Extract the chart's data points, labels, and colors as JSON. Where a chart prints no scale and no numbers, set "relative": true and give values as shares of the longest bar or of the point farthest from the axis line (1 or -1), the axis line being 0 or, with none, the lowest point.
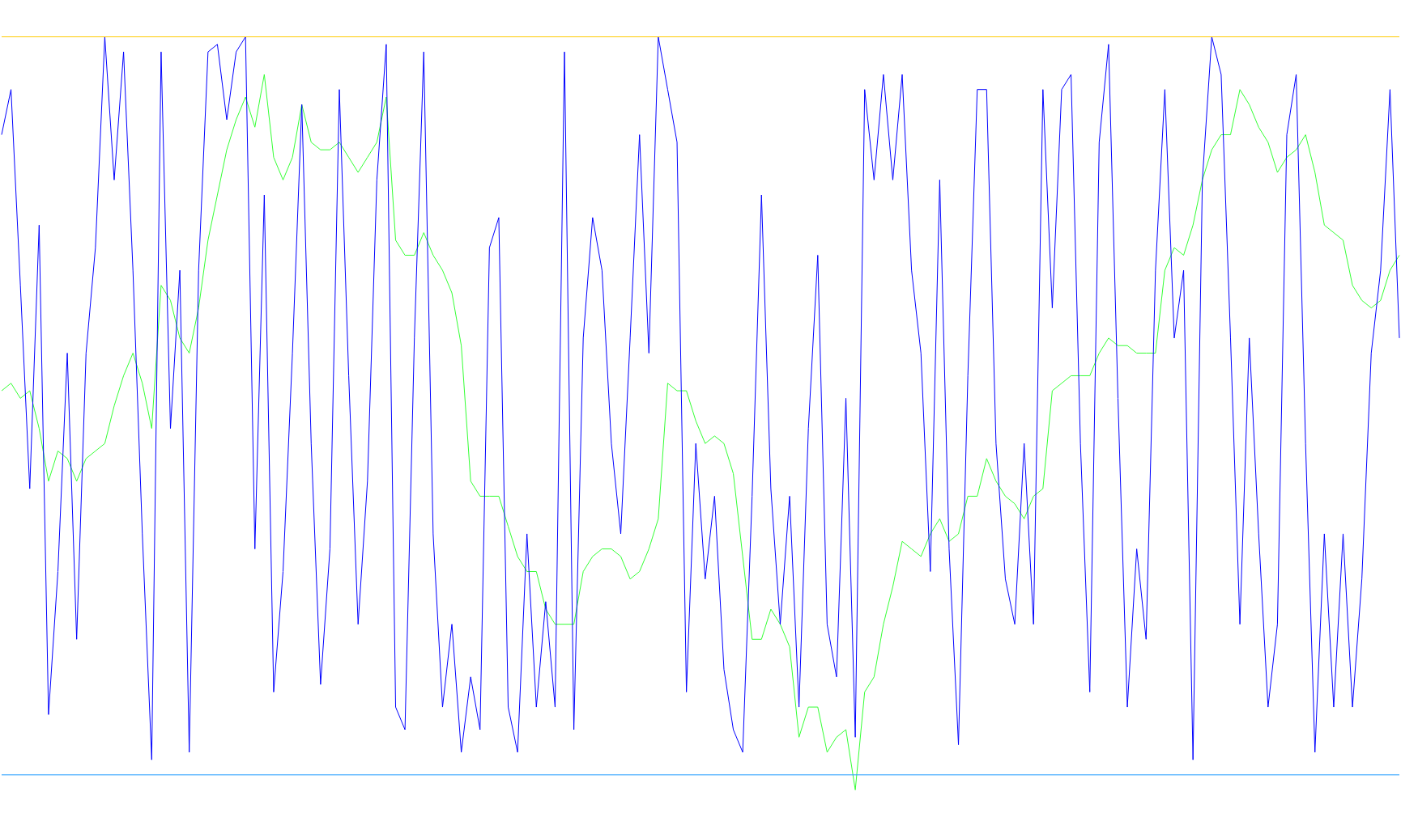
{
  "chart_data": {
    "type": "line",
    "relative": true,
    "categories": [
      null,
      null,
      null,
      null,
      null,
      null,
      null,
      null,
      null,
      null,
      null,
      null,
      null,
      null,
      null,
      null,
      null,
      null,
      null,
      null,
      null,
      null,
      null,
      null,
      null,
      null,
      null,
      null,
      null,
      null,
      null,
      null,
      null,
      null,
      null,
      null,
      null,
      null,
      null,
      null,
      null,
      null,
      null,
      null,
      null,
      null,
      null,
      null,
      null,
      null,
      null,
      null,
      null,
      null,
      null,
      null,
      null,
      null,
      null,
      null,
      null,
      null,
      null,
      null,
      null,
      null,
      null,
      null,
      null,
      null,
      null,
      null,
      null,
      null,
      null,
      null,
      null,
      null,
      null,
      null,
      null,
      null,
      null,
      null,
      null,
      null,
      null,
      null,
      null,
      null,
      null,
      null,
      null,
      null,
      null,
      null,
      null,
      null,
      null,
      null,
      null,
      null,
      null,
      null,
      null,
      null,
      null,
      null,
      null,
      null,
      null,
      null,
      null,
      null,
      null,
      null,
      null,
      null,
      null,
      null,
      null,
      null,
      null,
      null,
      null,
      null,
      null,
      null,
      null,
      null,
      null,
      null,
      null,
      null,
      null,
      null,
      null,
      null,
      null,
      null,
      null,
      null,
      null,
      null,
      null,
      null,
      null,
      null,
      null,
      null
    ],
    "series": [
      {
        "color": "#33ff33",
        "values": [
          0.53,
          0.54,
          0.52,
          0.53,
          0.48,
          0.41,
          0.45,
          0.44,
          0.41,
          0.44,
          0.45,
          0.46,
          0.51,
          0.55,
          0.58,
          0.54,
          0.48,
          0.67,
          0.65,
          0.6,
          0.58,
          0.64,
          0.73,
          0.79,
          0.85,
          0.89,
          0.92,
          0.88,
          0.95,
          0.84,
          0.81,
          0.84,
          0.91,
          0.86,
          0.85,
          0.85,
          0.86,
          0.84,
          0.82,
          0.84,
          0.86,
          0.92,
          0.73,
          0.71,
          0.71,
          0.74,
          0.71,
          0.69,
          0.66,
          0.59,
          0.41,
          0.39,
          0.39,
          0.39,
          0.35,
          0.31,
          0.29,
          0.29,
          0.24,
          0.22,
          0.22,
          0.22,
          0.29,
          0.31,
          0.32,
          0.32,
          0.31,
          0.28,
          0.29,
          0.32,
          0.36,
          0.54,
          0.53,
          0.53,
          0.49,
          0.46,
          0.47,
          0.46,
          0.42,
          0.31,
          0.2,
          0.2,
          0.24,
          0.22,
          0.19,
          0.07,
          0.11,
          0.11,
          0.05,
          0.07,
          0.08,
          0.0,
          0.13,
          0.15,
          0.22,
          0.27,
          0.33,
          0.32,
          0.31,
          0.34,
          0.36,
          0.33,
          0.34,
          0.39,
          0.39,
          0.44,
          0.41,
          0.39,
          0.38,
          0.36,
          0.39,
          0.4,
          0.53,
          0.54,
          0.55,
          0.55,
          0.55,
          0.58,
          0.6,
          0.59,
          0.59,
          0.58,
          0.58,
          0.58,
          0.69,
          0.72,
          0.71,
          0.75,
          0.81,
          0.85,
          0.87,
          0.87,
          0.93,
          0.91,
          0.88,
          0.86,
          0.82,
          0.84,
          0.85,
          0.87,
          0.82,
          0.75,
          0.74,
          0.73,
          0.67,
          0.65,
          0.64,
          0.65,
          0.69,
          0.71
        ]
      },
      {
        "color": "#0000ff",
        "values": [
          0.87,
          0.93,
          0.67,
          0.4,
          0.75,
          0.1,
          0.29,
          0.58,
          0.2,
          0.58,
          0.72,
          1.0,
          0.81,
          0.98,
          0.69,
          0.34,
          0.04,
          0.98,
          0.48,
          0.69,
          0.05,
          0.69,
          0.98,
          0.99,
          0.89,
          0.98,
          1.0,
          0.32,
          0.79,
          0.13,
          0.29,
          0.58,
          0.91,
          0.46,
          0.14,
          0.32,
          0.93,
          0.55,
          0.22,
          0.41,
          0.81,
          0.99,
          0.11,
          0.08,
          0.6,
          0.98,
          0.34,
          0.11,
          0.22,
          0.05,
          0.15,
          0.08,
          0.72,
          0.76,
          0.11,
          0.05,
          0.34,
          0.11,
          0.25,
          0.11,
          0.98,
          0.08,
          0.6,
          0.76,
          0.69,
          0.46,
          0.34,
          0.6,
          0.87,
          0.58,
          1.0,
          0.93,
          0.86,
          0.13,
          0.46,
          0.28,
          0.39,
          0.16,
          0.08,
          0.05,
          0.39,
          0.79,
          0.4,
          0.22,
          0.39,
          0.11,
          0.48,
          0.71,
          0.22,
          0.15,
          0.52,
          0.07,
          0.93,
          0.81,
          0.95,
          0.81,
          0.95,
          0.69,
          0.58,
          0.29,
          0.81,
          0.32,
          0.06,
          0.55,
          0.93,
          0.93,
          0.46,
          0.28,
          0.22,
          0.46,
          0.22,
          0.93,
          0.64,
          0.93,
          0.95,
          0.46,
          0.13,
          0.86,
          0.99,
          0.52,
          0.11,
          0.32,
          0.2,
          0.69,
          0.93,
          0.6,
          0.69,
          0.04,
          0.81,
          1.0,
          0.95,
          0.6,
          0.22,
          0.6,
          0.34,
          0.11,
          0.22,
          0.87,
          0.95,
          0.46,
          0.05,
          0.34,
          0.11,
          0.34,
          0.11,
          0.28,
          0.58,
          0.69,
          0.93,
          0.6
        ]
      }
    ],
    "ref_lines": [
      {
        "axis": "y",
        "value": 1.0,
        "color": "#ffcc00"
      },
      {
        "axis": "y",
        "value": 0.02,
        "color": "#1e9bff"
      }
    ]
  }
}
